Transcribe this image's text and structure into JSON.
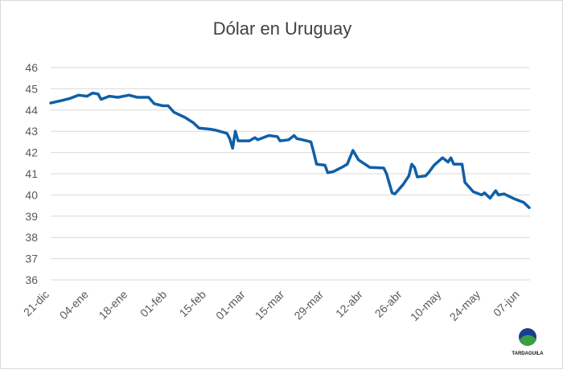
{
  "chart_data": {
    "type": "line",
    "title": "Dólar en Uruguay",
    "xlabel": "",
    "ylabel": "",
    "ylim": [
      36,
      46
    ],
    "yticks": [
      "36",
      "37",
      "38",
      "39",
      "40",
      "41",
      "42",
      "43",
      "44",
      "45",
      "46"
    ],
    "xticks": [
      "21-dic",
      "04-ene",
      "18-ene",
      "01-feb",
      "15-feb",
      "01-mar",
      "15-mar",
      "29-mar",
      "12-abr",
      "26-abr",
      "10-may",
      "24-may",
      "07-jun"
    ],
    "grid": true,
    "legend": "none",
    "line_color": "#0F5FA8",
    "series": [
      {
        "x": [
          "23-dic",
          "27-dic",
          "30-dic",
          "02-ene",
          "05-ene",
          "07-ene",
          "09-ene",
          "10-ene",
          "13-ene",
          "16-ene",
          "20-ene",
          "23-ene",
          "27-ene",
          "29-ene",
          "01-feb",
          "03-feb",
          "05-feb",
          "09-feb",
          "12-feb",
          "14-feb",
          "18-feb",
          "20-feb",
          "24-feb",
          "25-feb",
          "26-feb",
          "27-feb",
          "28-feb",
          "04-mar",
          "06-mar",
          "07-mar",
          "10-mar",
          "11-mar",
          "14-mar",
          "15-mar",
          "18-mar",
          "20-mar",
          "21-mar",
          "23-mar",
          "26-mar",
          "27-mar",
          "28-mar",
          "31-mar",
          "01-abr",
          "03-abr",
          "06-abr",
          "08-abr",
          "10-abr",
          "12-abr",
          "16-abr",
          "21-abr",
          "22-abr",
          "24-abr",
          "25-abr",
          "28-abr",
          "30-abr",
          "01-may",
          "02-may",
          "03-may",
          "06-may",
          "07-may",
          "09-may",
          "12-may",
          "14-may",
          "15-may",
          "16-may",
          "19-may",
          "20-may",
          "23-may",
          "26-may",
          "27-may",
          "29-may",
          "31-may",
          "01-jun",
          "03-jun",
          "07-jun",
          "10-jun",
          "12-jun"
        ],
        "values": [
          44.33,
          44.45,
          44.55,
          44.7,
          44.65,
          44.8,
          44.75,
          44.5,
          44.65,
          44.6,
          44.7,
          44.6,
          44.6,
          44.3,
          44.2,
          44.2,
          43.9,
          43.65,
          43.4,
          43.15,
          43.1,
          43.05,
          42.9,
          42.65,
          42.2,
          43.0,
          42.55,
          42.55,
          42.7,
          42.6,
          42.75,
          42.8,
          42.75,
          42.55,
          42.6,
          42.8,
          42.65,
          42.6,
          42.5,
          42.0,
          41.45,
          41.4,
          41.05,
          41.1,
          41.3,
          41.45,
          42.1,
          41.65,
          41.3,
          41.27,
          41.0,
          40.1,
          40.05,
          40.5,
          40.9,
          41.45,
          41.3,
          40.85,
          40.9,
          41.05,
          41.4,
          41.75,
          41.55,
          41.75,
          41.45,
          41.45,
          40.6,
          40.15,
          40.0,
          40.1,
          39.85,
          40.2,
          40.0,
          40.05,
          39.8,
          39.65,
          39.4
        ]
      }
    ]
  },
  "logo": {
    "text": "TARDAGUILA"
  }
}
